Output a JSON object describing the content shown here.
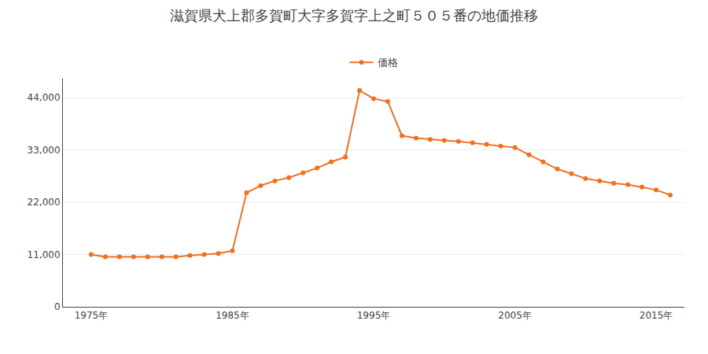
{
  "chart_data": {
    "type": "line",
    "title": "滋賀県犬上郡多賀町大字多賀字上之町５０５番の地価推移",
    "x": [
      1975,
      1976,
      1977,
      1978,
      1979,
      1980,
      1981,
      1982,
      1983,
      1984,
      1985,
      1986,
      1987,
      1988,
      1989,
      1990,
      1991,
      1992,
      1993,
      1994,
      1995,
      1996,
      1997,
      1998,
      1999,
      2000,
      2001,
      2002,
      2003,
      2004,
      2005,
      2006,
      2007,
      2008,
      2009,
      2010,
      2011,
      2012,
      2013,
      2014,
      2015,
      2016
    ],
    "series": [
      {
        "name": "価格",
        "color": "#f07020",
        "marker": "circle",
        "values": [
          11000,
          10500,
          10500,
          10500,
          10500,
          10500,
          10500,
          10800,
          11000,
          11200,
          11800,
          24000,
          25500,
          26500,
          27200,
          28200,
          29200,
          30500,
          31500,
          45500,
          43800,
          43200,
          36000,
          35500,
          35200,
          35000,
          34800,
          34500,
          34200,
          33800,
          33500,
          32000,
          30500,
          29000,
          28000,
          27000,
          26500,
          26000,
          25700,
          25200,
          24600,
          23500
        ]
      }
    ],
    "xlim": [
      1973,
      2017
    ],
    "xticks": [
      {
        "value": 1975,
        "label": "1975年"
      },
      {
        "value": 1985,
        "label": "1985年"
      },
      {
        "value": 1995,
        "label": "1995年"
      },
      {
        "value": 2005,
        "label": "2005年"
      },
      {
        "value": 2015,
        "label": "2015年"
      }
    ],
    "ylim": [
      0,
      48000
    ],
    "yticks": [
      0,
      {
        "value": 11000,
        "label": "11,000"
      },
      {
        "value": 22000,
        "label": "22,000"
      },
      {
        "value": 33000,
        "label": "33,000"
      },
      {
        "value": 44000,
        "label": "44,000"
      }
    ],
    "grid": true,
    "legend": "top"
  }
}
